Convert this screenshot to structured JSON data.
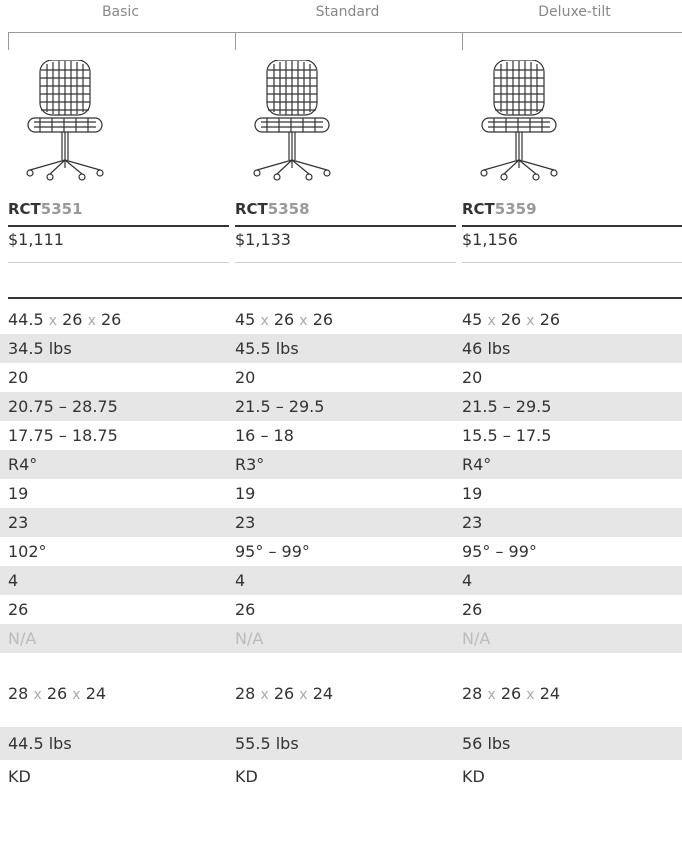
{
  "columns": [
    {
      "label": "Basic",
      "model": {
        "prefix": "RCT",
        "number": "5351"
      },
      "price": "$1,111"
    },
    {
      "label": "Standard",
      "model": {
        "prefix": "RCT",
        "number": "5358"
      },
      "price": "$1,133"
    },
    {
      "label": "Deluxe-tilt",
      "model": {
        "prefix": "RCT",
        "number": "5359"
      },
      "price": "$1,156"
    }
  ],
  "rows": [
    [
      [
        "44.5",
        "x",
        "26",
        "x",
        "26"
      ],
      [
        "45",
        "x",
        "26",
        "x",
        "26"
      ],
      [
        "45",
        "x",
        "26",
        "x",
        "26"
      ]
    ],
    [
      "34.5 lbs",
      "45.5 lbs",
      "46 lbs"
    ],
    [
      "20",
      "20",
      "20"
    ],
    [
      "20.75 – 28.75",
      "21.5 – 29.5",
      "21.5 – 29.5"
    ],
    [
      "17.75 – 18.75",
      "16 – 18",
      "15.5 – 17.5"
    ],
    [
      "R4°",
      "R3°",
      "R4°"
    ],
    [
      "19",
      "19",
      "19"
    ],
    [
      "23",
      "23",
      "23"
    ],
    [
      "102°",
      "95° – 99°",
      "95° – 99°"
    ],
    [
      "4",
      "4",
      "4"
    ],
    [
      "26",
      "26",
      "26"
    ],
    [
      "N/A",
      "N/A",
      "N/A"
    ],
    [
      [
        "28",
        "x",
        "26",
        "x",
        "24"
      ],
      [
        "28",
        "x",
        "26",
        "x",
        "24"
      ],
      [
        "28",
        "x",
        "26",
        "x",
        "24"
      ]
    ],
    [
      "44.5 lbs",
      "55.5 lbs",
      "56 lbs"
    ],
    [
      "KD",
      "KD",
      "KD"
    ]
  ]
}
